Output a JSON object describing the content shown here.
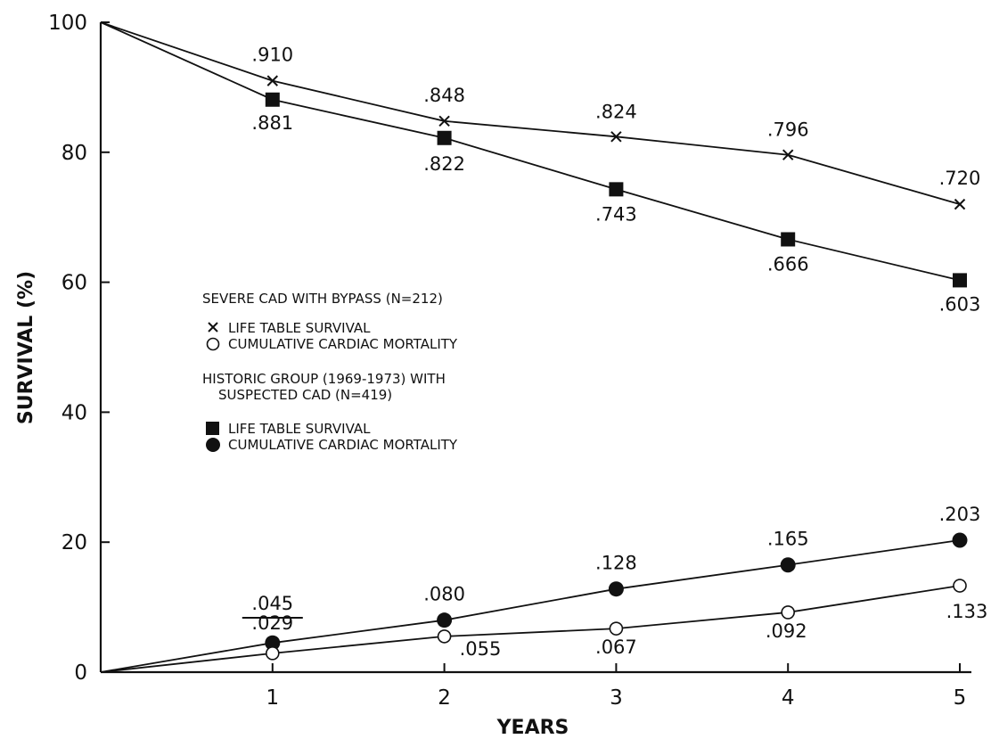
{
  "chart_data": {
    "type": "line",
    "xlabel": "YEARS",
    "ylabel": "SURVIVAL (%)",
    "xlim": [
      0,
      5
    ],
    "ylim": [
      0,
      100
    ],
    "x_ticks": [
      "1",
      "2",
      "3",
      "4",
      "5"
    ],
    "y_ticks": [
      "0",
      "20",
      "40",
      "60",
      "80",
      "100"
    ],
    "grid": false,
    "x": [
      0,
      1,
      2,
      3,
      4,
      5
    ],
    "series": [
      {
        "id": "bypass_survival",
        "marker": "x",
        "values": [
          100,
          91.0,
          84.8,
          82.4,
          79.6,
          72.0
        ],
        "labels": [
          "",
          ".910",
          ".848",
          ".824",
          ".796",
          ".720"
        ]
      },
      {
        "id": "historic_survival",
        "marker": "filled-square",
        "values": [
          100,
          88.1,
          82.2,
          74.3,
          66.6,
          60.3
        ],
        "labels": [
          "",
          ".881",
          ".822",
          ".743",
          ".666",
          ".603"
        ]
      },
      {
        "id": "historic_mortality",
        "marker": "filled-circle",
        "values": [
          0,
          4.5,
          8.0,
          12.8,
          16.5,
          20.3
        ],
        "labels": [
          "",
          ".045",
          ".080",
          ".128",
          ".165",
          ".203"
        ]
      },
      {
        "id": "bypass_mortality",
        "marker": "open-circle",
        "values": [
          0,
          2.9,
          5.5,
          6.7,
          9.2,
          13.3
        ],
        "labels": [
          "",
          ".029",
          ".055",
          ".067",
          ".092",
          ".133"
        ]
      }
    ],
    "legend": {
      "group1_title": "SEVERE CAD WITH BYPASS  (N=212)",
      "group1_item1": "LIFE TABLE SURVIVAL",
      "group1_item2": "CUMULATIVE CARDIAC MORTALITY",
      "group2_title_line1": "HISTORIC GROUP (1969-1973) WITH",
      "group2_title_line2": "SUSPECTED CAD  (N=419)",
      "group2_item1": "LIFE TABLE SURVIVAL",
      "group2_item2": "CUMULATIVE CARDIAC MORTALITY"
    }
  }
}
